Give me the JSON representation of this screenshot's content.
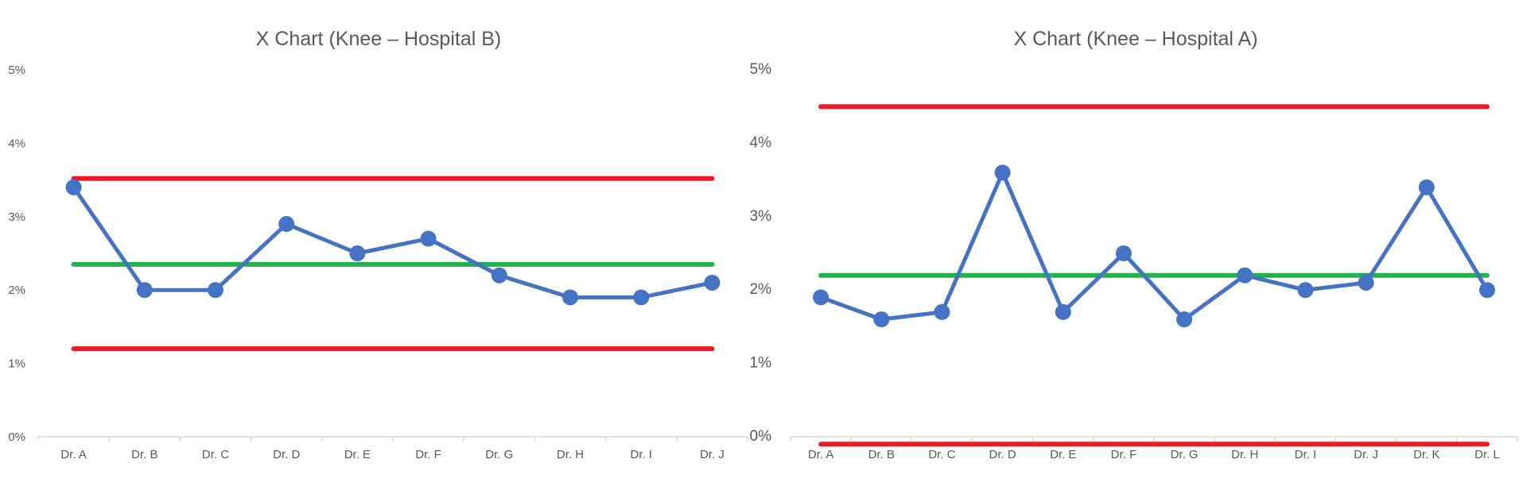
{
  "chart_data": [
    {
      "type": "line",
      "title": "X Chart (Knee – Hospital B)",
      "categories": [
        "Dr. A",
        "Dr. B",
        "Dr. C",
        "Dr. D",
        "Dr. E",
        "Dr. F",
        "Dr. G",
        "Dr. H",
        "Dr. I",
        "Dr. J"
      ],
      "yticks": [
        "0%",
        "1%",
        "2%",
        "3%",
        "4%",
        "5%"
      ],
      "ylim": [
        0,
        5
      ],
      "series": [
        {
          "values": [
            3.4,
            2.0,
            2.0,
            2.9,
            2.5,
            2.7,
            2.2,
            1.9,
            1.9,
            2.1
          ],
          "color": "#4472C4",
          "style": "line-markers"
        },
        {
          "values": [
            2.35,
            2.35,
            2.35,
            2.35,
            2.35,
            2.35,
            2.35,
            2.35,
            2.35,
            2.35
          ],
          "color": "#22B14C",
          "style": "line"
        },
        {
          "values": [
            3.52,
            3.52,
            3.52,
            3.52,
            3.52,
            3.52,
            3.52,
            3.52,
            3.52,
            3.52
          ],
          "color": "#ED1C24",
          "style": "line"
        },
        {
          "values": [
            1.2,
            1.2,
            1.2,
            1.2,
            1.2,
            1.2,
            1.2,
            1.2,
            1.2,
            1.2
          ],
          "color": "#ED1C24",
          "style": "line"
        }
      ],
      "grid": false
    },
    {
      "type": "line",
      "title": "X Chart (Knee – Hospital A)",
      "categories": [
        "Dr. A",
        "Dr. B",
        "Dr. C",
        "Dr. D",
        "Dr. E",
        "Dr. F",
        "Dr. G",
        "Dr. H",
        "Dr. I",
        "Dr. J",
        "Dr. K",
        "Dr. L"
      ],
      "yticks": [
        "0%",
        "1%",
        "2%",
        "3%",
        "4%",
        "5%"
      ],
      "ylim": [
        0,
        5
      ],
      "series": [
        {
          "values": [
            1.9,
            1.6,
            1.7,
            3.6,
            1.7,
            2.5,
            1.6,
            2.2,
            2.0,
            2.1,
            3.4,
            2.0
          ],
          "color": "#4472C4",
          "style": "line-markers"
        },
        {
          "values": [
            2.2,
            2.2,
            2.2,
            2.2,
            2.2,
            2.2,
            2.2,
            2.2,
            2.2,
            2.2,
            2.2,
            2.2
          ],
          "color": "#22B14C",
          "style": "line"
        },
        {
          "values": [
            4.5,
            4.5,
            4.5,
            4.5,
            4.5,
            4.5,
            4.5,
            4.5,
            4.5,
            4.5,
            4.5,
            4.5
          ],
          "color": "#ED1C24",
          "style": "line"
        },
        {
          "values": [
            -0.1,
            -0.1,
            -0.1,
            -0.1,
            -0.1,
            -0.1,
            -0.1,
            -0.1,
            -0.1,
            -0.1,
            -0.1,
            -0.1
          ],
          "color": "#ED1C24",
          "style": "line"
        }
      ],
      "grid": false
    }
  ]
}
